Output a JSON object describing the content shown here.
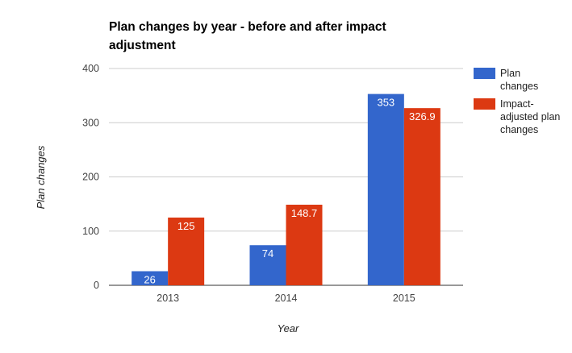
{
  "chart_data": {
    "type": "bar",
    "title_lines": [
      "Plan changes by year - before and after impact",
      "adjustment"
    ],
    "xlabel": "Year",
    "ylabel": "Plan changes",
    "ylim": [
      0,
      400
    ],
    "yticks": [
      0,
      100,
      200,
      300,
      400
    ],
    "categories": [
      "2013",
      "2014",
      "2015"
    ],
    "series": [
      {
        "name": "Plan changes",
        "legend_lines": [
          "Plan",
          "changes"
        ],
        "color": "#3366cc",
        "values": [
          26,
          74,
          353
        ],
        "labels": [
          "26",
          "74",
          "353"
        ]
      },
      {
        "name": "Impact-adjusted plan changes",
        "legend_lines": [
          "Impact-",
          "adjusted plan",
          "changes"
        ],
        "color": "#dc3912",
        "values": [
          125,
          148.7,
          326.9
        ],
        "labels": [
          "125",
          "148.7",
          "326.9"
        ]
      }
    ],
    "grid": true,
    "legend_position": "right"
  }
}
